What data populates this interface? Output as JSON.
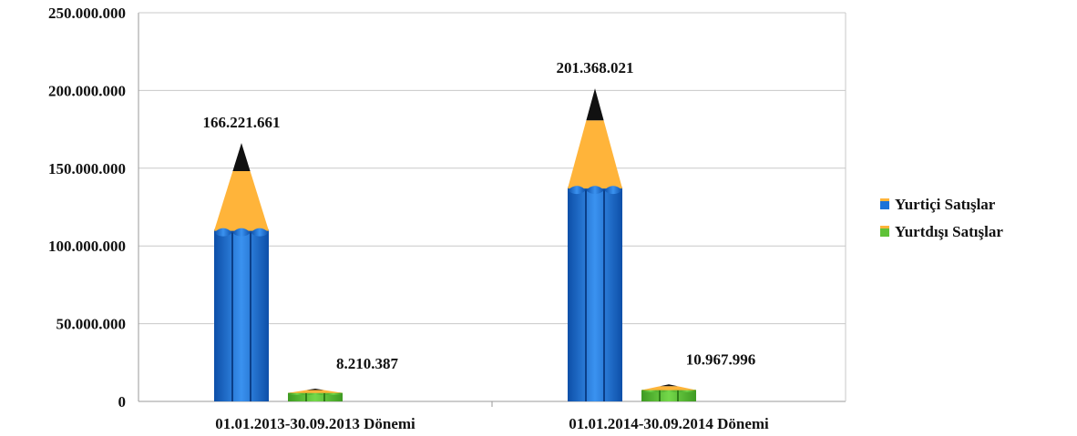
{
  "chart_data": {
    "type": "bar",
    "style": "pencil-shaped bars",
    "categories": [
      "01.01.2013-30.09.2013 Dönemi",
      "01.01.2014-30.09.2014 Dönemi"
    ],
    "series": [
      {
        "name": "Yurtiçi Satışlar",
        "values": [
          166221661,
          201368021
        ],
        "labels": [
          "166.221.661",
          "201.368.021"
        ],
        "color": "#1c73d8"
      },
      {
        "name": "Yurtdışı Satışlar",
        "values": [
          8210387,
          10967996
        ],
        "labels": [
          "8.210.387",
          "10.967.996"
        ],
        "color": "#5fc238"
      }
    ],
    "ylim": [
      0,
      250000000
    ],
    "yticks": [
      0,
      50000000,
      100000000,
      150000000,
      200000000,
      250000000
    ],
    "ytick_labels": [
      "0",
      "50.000.000",
      "100.000.000",
      "150.000.000",
      "200.000.000",
      "250.000.000"
    ],
    "grid": true,
    "legend_position": "right",
    "title": "",
    "xlabel": "",
    "ylabel": ""
  }
}
